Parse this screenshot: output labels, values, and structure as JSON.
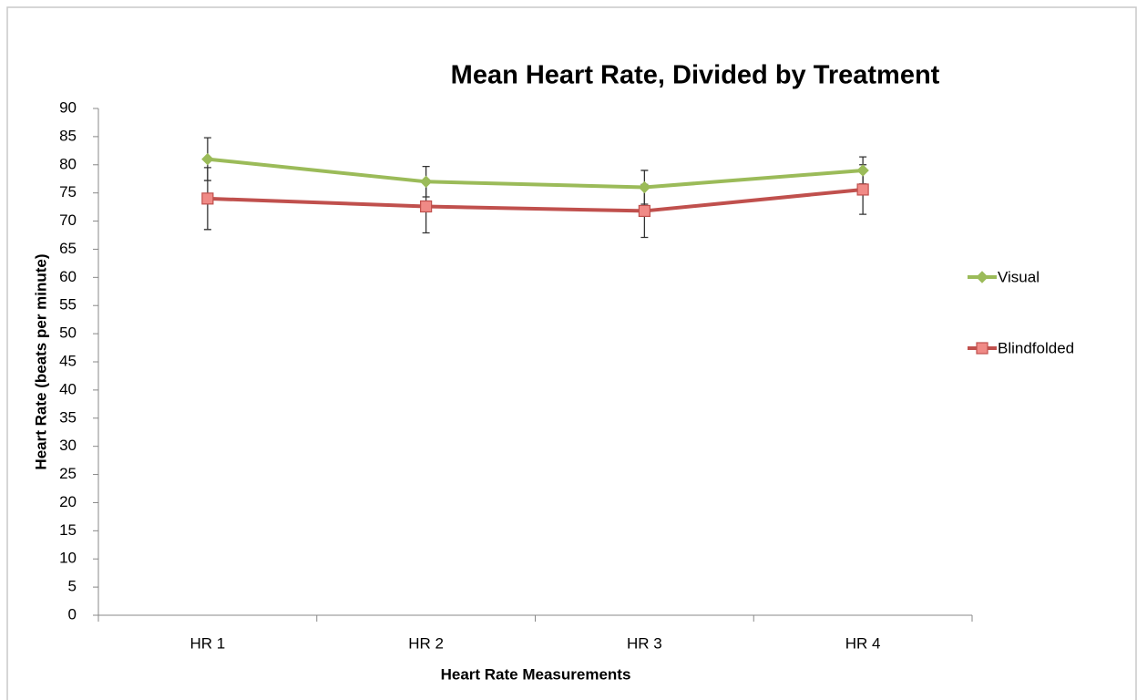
{
  "chart_data": {
    "type": "line",
    "title": "Mean Heart Rate, Divided by Treatment",
    "x_label": "Heart Rate Measurements",
    "y_label": "Heart Rate (beats per minute)",
    "categories": [
      "HR 1",
      "HR 2",
      "HR 3",
      "HR 4"
    ],
    "series": [
      {
        "name": "Visual",
        "color": "#9bbb59",
        "marker": "diamond",
        "values": [
          81,
          77,
          76,
          79
        ],
        "errors": [
          3.8,
          2.7,
          3,
          2.4
        ]
      },
      {
        "name": "Blindfolded",
        "color": "#c0504d",
        "marker": "square",
        "values": [
          74,
          72.6,
          71.8,
          75.6
        ],
        "errors": [
          5.5,
          4.7,
          4.7,
          4.4
        ]
      }
    ],
    "ylim": [
      0,
      90
    ],
    "yticks": [
      0,
      5,
      10,
      15,
      20,
      25,
      30,
      35,
      40,
      45,
      50,
      55,
      60,
      65,
      70,
      75,
      80,
      85,
      90
    ],
    "grid": false,
    "legend": "right"
  }
}
